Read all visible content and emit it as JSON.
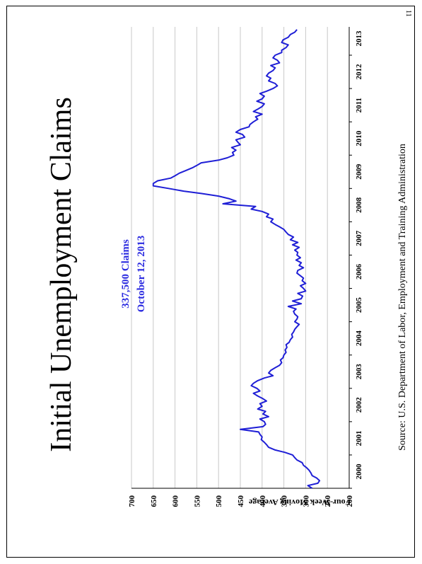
{
  "page_number": "11",
  "chart_data": {
    "type": "line",
    "title": "Initial Unemployment Claims",
    "annotation_line1": "337,500 Claims",
    "annotation_line2": "October 12, 2013",
    "ylabel": "Four-Week Moving Average",
    "source": "Source:  U.S. Department of Labor, Employment and Training Administration",
    "y_ticks": [
      "700",
      "650",
      "600",
      "550",
      "500",
      "450",
      "400",
      "350",
      "300",
      "250",
      "200"
    ],
    "ylim": [
      200,
      700
    ],
    "x_ticks": [
      "2000",
      "2001",
      "2002",
      "2003",
      "2004",
      "2005",
      "2006",
      "2007",
      "2008",
      "2009",
      "2010",
      "2011",
      "2012",
      "2013"
    ],
    "xlim": [
      2000,
      2013.85
    ],
    "grid": true,
    "orientation": "rotated 90° clockwise (landscape chart on portrait page)",
    "colors": {
      "line": "#1f1fd6",
      "annotation": "#2a2ae0",
      "grid": "#c8c8c8",
      "axis": "#000000"
    },
    "series": [
      {
        "x": [
          2000.0,
          2000.08,
          2000.15,
          2000.23,
          2000.31,
          2000.38,
          2000.46,
          2000.54,
          2000.62,
          2000.69,
          2000.77,
          2000.85,
          2000.92,
          2001.0,
          2001.08,
          2001.15,
          2001.23,
          2001.31,
          2001.38,
          2001.46,
          2001.54,
          2001.62,
          2001.69,
          2001.77,
          2001.85,
          2001.92,
          2002.0,
          2002.08,
          2002.15,
          2002.23,
          2002.31,
          2002.38,
          2002.46,
          2002.54,
          2002.62,
          2002.69,
          2002.77,
          2002.85,
          2002.92,
          2003.0,
          2003.08,
          2003.15,
          2003.23,
          2003.31,
          2003.38,
          2003.46,
          2003.54,
          2003.62,
          2003.69,
          2003.77,
          2003.85,
          2003.92,
          2004.0,
          2004.08,
          2004.15,
          2004.23,
          2004.31,
          2004.38,
          2004.46,
          2004.54,
          2004.62,
          2004.69,
          2004.77,
          2004.85,
          2004.92,
          2005.0,
          2005.08,
          2005.15,
          2005.23,
          2005.31,
          2005.38,
          2005.46,
          2005.54,
          2005.62,
          2005.69,
          2005.77,
          2005.85,
          2005.92,
          2006.0,
          2006.08,
          2006.15,
          2006.23,
          2006.31,
          2006.38,
          2006.46,
          2006.54,
          2006.62,
          2006.69,
          2006.77,
          2006.85,
          2006.92,
          2007.0,
          2007.08,
          2007.15,
          2007.23,
          2007.31,
          2007.38,
          2007.46,
          2007.54,
          2007.62,
          2007.69,
          2007.77,
          2007.85,
          2007.92,
          2008.0,
          2008.08,
          2008.15,
          2008.23,
          2008.31,
          2008.38,
          2008.46,
          2008.54,
          2008.62,
          2008.69,
          2008.77,
          2008.85,
          2008.92,
          2009.0,
          2009.08,
          2009.15,
          2009.23,
          2009.31,
          2009.38,
          2009.46,
          2009.54,
          2009.62,
          2009.69,
          2009.77,
          2009.85,
          2009.92,
          2010.0,
          2010.08,
          2010.15,
          2010.23,
          2010.31,
          2010.38,
          2010.46,
          2010.54,
          2010.62,
          2010.69,
          2010.77,
          2010.85,
          2010.92,
          2011.0,
          2011.08,
          2011.15,
          2011.23,
          2011.31,
          2011.38,
          2011.46,
          2011.54,
          2011.62,
          2011.69,
          2011.77,
          2011.85,
          2011.92,
          2012.0,
          2012.08,
          2012.15,
          2012.23,
          2012.31,
          2012.38,
          2012.46,
          2012.54,
          2012.62,
          2012.69,
          2012.77,
          2012.85,
          2012.92,
          2013.0,
          2013.08,
          2013.15,
          2013.23,
          2013.31,
          2013.38,
          2013.46,
          2013.54,
          2013.62,
          2013.69,
          2013.77
        ],
        "values": [
          285,
          295,
          272,
          268,
          275,
          285,
          288,
          292,
          298,
          305,
          308,
          320,
          325,
          330,
          348,
          370,
          385,
          390,
          395,
          402,
          400,
          405,
          408,
          450,
          398,
          392,
          395,
          405,
          385,
          398,
          392,
          410,
          400,
          405,
          390,
          398,
          410,
          420,
          405,
          412,
          425,
          420,
          410,
          395,
          375,
          385,
          380,
          370,
          360,
          355,
          358,
          352,
          350,
          345,
          347,
          343,
          345,
          338,
          335,
          330,
          332,
          328,
          325,
          320,
          315,
          325,
          320,
          318,
          325,
          328,
          322,
          340,
          310,
          330,
          310,
          307,
          318,
          300,
          305,
          312,
          300,
          308,
          305,
          312,
          320,
          318,
          305,
          315,
          310,
          322,
          312,
          320,
          318,
          325,
          315,
          330,
          318,
          335,
          328,
          340,
          345,
          350,
          360,
          370,
          380,
          375,
          390,
          385,
          400,
          425,
          415,
          490,
          460,
          475,
          500,
          540,
          580,
          615,
          650,
          650,
          640,
          610,
          600,
          590,
          575,
          560,
          550,
          540,
          500,
          480,
          465,
          468,
          460,
          470,
          450,
          455,
          460,
          440,
          445,
          460,
          450,
          430,
          428,
          420,
          410,
          415,
          400,
          420,
          410,
          400,
          395,
          412,
          400,
          395,
          405,
          390,
          375,
          365,
          370,
          385,
          380,
          390,
          385,
          375,
          370,
          380,
          360,
          365,
          375,
          370,
          355,
          355,
          345,
          340,
          355,
          352,
          340,
          335,
          325,
          320
        ]
      }
    ]
  }
}
